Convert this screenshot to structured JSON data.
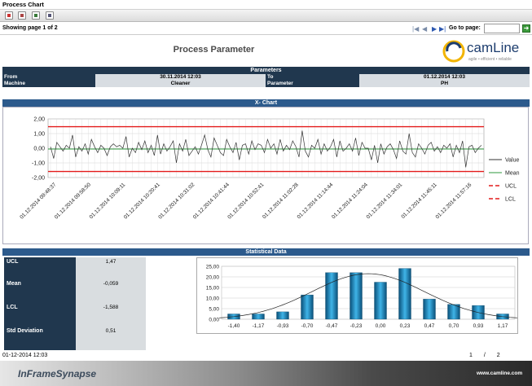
{
  "window": {
    "title": "Process Chart"
  },
  "toolbar": {
    "icons": [
      "print-icon",
      "export-pdf-icon",
      "export-excel-icon",
      "save-icon"
    ]
  },
  "pager": {
    "showing": "Showing page  1  of  2",
    "goto_label": "Go to page:",
    "goto_value": "",
    "goto_button": "➜"
  },
  "report": {
    "title": "Process Parameter",
    "logo_text": "camLine",
    "logo_tagline": "agile • efficient • reliable"
  },
  "parameters": {
    "header": "Parameters",
    "from_label": "From",
    "from_value": "30.11.2014 12:03",
    "to_label": "To",
    "to_value": "01.12.2014 12:03",
    "machine_label": "Machine",
    "machine_value": "Cleaner",
    "parameter_label": "Parameter",
    "parameter_value": "PH"
  },
  "xchart": {
    "header": "X- Chart",
    "legend": [
      {
        "label": "Value",
        "color": "#333333",
        "style": "solid"
      },
      {
        "label": "Mean",
        "color": "#2e9a3c",
        "style": "solid"
      },
      {
        "label": "UCL",
        "color": "#e31a1a",
        "style": "dashed"
      },
      {
        "label": "LCL",
        "color": "#e31a1a",
        "style": "dashed"
      }
    ]
  },
  "statistics": {
    "header": "Statistical Data",
    "rows": [
      {
        "label": "UCL",
        "value": "1,47"
      },
      {
        "label": "Mean",
        "value": "-0,059"
      },
      {
        "label": "LCL",
        "value": "-1,588"
      },
      {
        "label": "Std Deviation",
        "value": "0,51"
      }
    ]
  },
  "footer": {
    "date": "01-12-2014 12:03",
    "page": "1 / 2",
    "brand": "InFrameSynapse",
    "url": "www.camline.com"
  },
  "chart_data": [
    {
      "type": "line",
      "title": "",
      "ylim": [
        -2.0,
        2.0
      ],
      "yticks": [
        "2,00",
        "1,00",
        "0,00",
        "-1,00",
        "-2,00"
      ],
      "xtick_labels": [
        "01.12.2014 09:48:37",
        "01.12.2014 09:58:50",
        "01.12.2014 10:09:11",
        "01.12.2014 10:20:41",
        "01.12.2014 10:31:02",
        "01.12.2014 10:41:44",
        "01.12.2014 10:52:41",
        "01.12.2014 11:02:28",
        "01.12.2014 11:14:44",
        "01.12.2014 11:24:04",
        "01.12.2014 11:34:01",
        "01.12.2014 11:45:11",
        "01.12.2014 11:57:16"
      ],
      "grid": true,
      "legend_position": "right",
      "series": [
        {
          "name": "Value",
          "values": [
            0.1,
            -0.7,
            0.4,
            0.1,
            -0.2,
            0.2,
            0.0,
            0.9,
            -0.6,
            0.1,
            -0.2,
            0.3,
            -0.4,
            0.6,
            0.1,
            -0.3,
            0.2,
            0.0,
            -0.5,
            0.1,
            0.3,
            0.1,
            0.2,
            0.0,
            0.8,
            -0.6,
            0.0,
            -0.3,
            0.4,
            -0.1,
            0.5,
            -0.3,
            0.2,
            -0.5,
            0.9,
            -0.4,
            0.3,
            -0.2,
            0.1,
            0.5,
            -1.0,
            0.3,
            -0.2,
            0.6,
            -0.5,
            -0.2,
            0.1,
            -0.4,
            0.2,
            0.9,
            -0.1,
            -0.6,
            0.7,
            0.2,
            -0.3,
            -0.5,
            0.6,
            0.1,
            -0.3,
            0.4,
            -0.8,
            0.2,
            0.3,
            -0.4,
            0.5,
            -0.1,
            0.3,
            0.2,
            -0.3,
            0.6,
            0.0,
            0.3,
            -0.4,
            0.6,
            -0.2,
            0.2,
            -0.1,
            0.5,
            0.1,
            -0.6,
            1.2,
            -0.2,
            -0.6,
            0.2,
            0.0,
            0.6,
            -0.4,
            0.3,
            -0.2,
            0.1,
            0.6,
            -0.6,
            0.5,
            -0.2,
            0.0,
            0.3,
            -0.2,
            0.7,
            -0.5,
            0.4,
            0.0,
            0.0,
            -0.8,
            0.2,
            -1.0,
            0.3,
            -0.4,
            0.1,
            0.3,
            -0.1,
            -0.7,
            0.5,
            -0.2,
            -0.4,
            1.0,
            -0.3,
            -0.6,
            0.3,
            0.0,
            -0.4,
            0.2,
            0.4,
            -0.2,
            0.1,
            -0.3,
            0.2,
            0.0,
            0.3,
            -0.6,
            0.2,
            -0.3,
            0.5,
            -1.3,
            0.1,
            0.2,
            -0.3,
            0.0,
            0.2
          ]
        },
        {
          "name": "Mean",
          "values": [
            -0.059
          ]
        },
        {
          "name": "UCL",
          "values": [
            1.47
          ]
        },
        {
          "name": "LCL",
          "values": [
            -1.588
          ]
        }
      ]
    },
    {
      "type": "bar",
      "title": "",
      "categories": [
        "-1,40",
        "-1,17",
        "-0,93",
        "-0,70",
        "-0,47",
        "-0,23",
        "0,00",
        "0,23",
        "0,47",
        "0,70",
        "0,93",
        "1,17"
      ],
      "values": [
        2.5,
        2.5,
        3.5,
        11.5,
        22.0,
        22.0,
        17.5,
        24.0,
        9.5,
        7.0,
        6.5,
        2.5
      ],
      "ylim": [
        0,
        25
      ],
      "yticks": [
        "25,00",
        "20,00",
        "15,00",
        "10,00",
        "5,00",
        "0,00"
      ],
      "grid": true,
      "overlay": "normal-curve"
    }
  ]
}
